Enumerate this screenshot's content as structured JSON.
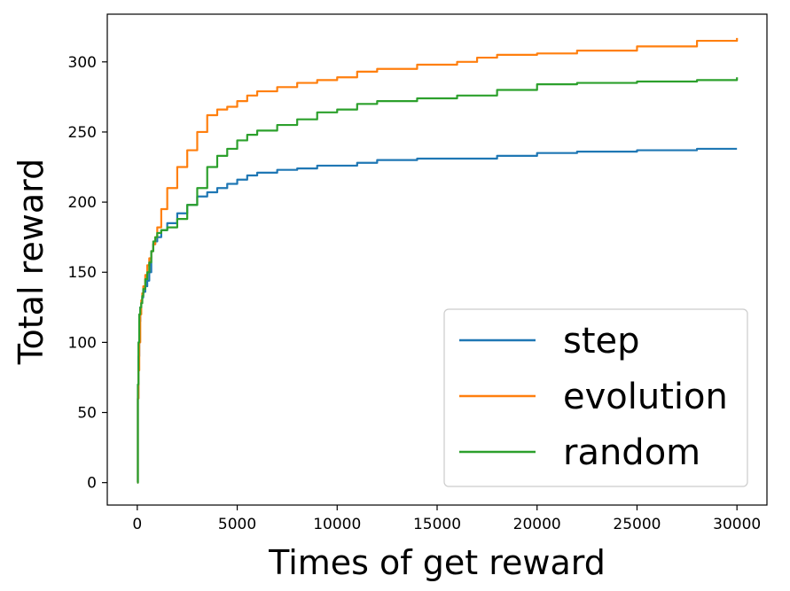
{
  "chart_data": {
    "type": "line",
    "title": "",
    "xlabel": "Times of get reward",
    "ylabel": "Total reward",
    "xlim": [
      -1500,
      31500
    ],
    "ylim": [
      -16,
      334
    ],
    "x_ticks": [
      0,
      5000,
      10000,
      15000,
      20000,
      25000,
      30000
    ],
    "x_tick_labels": [
      "0",
      "5000",
      "10000",
      "15000",
      "20000",
      "25000",
      "30000"
    ],
    "y_ticks": [
      0,
      50,
      100,
      150,
      200,
      250,
      300
    ],
    "y_tick_labels": [
      "0",
      "50",
      "100",
      "150",
      "200",
      "250",
      "300"
    ],
    "grid": false,
    "legend": {
      "position": "lower right",
      "entries": [
        "step",
        "evolution",
        "random"
      ]
    },
    "series": [
      {
        "name": "step",
        "color": "#1f77b4",
        "x": [
          0,
          30,
          60,
          100,
          150,
          200,
          250,
          300,
          400,
          500,
          600,
          700,
          800,
          900,
          1000,
          1200,
          1500,
          2000,
          2500,
          3000,
          3500,
          4000,
          4500,
          5000,
          5500,
          6000,
          7000,
          8000,
          9000,
          10000,
          11000,
          12000,
          14000,
          16000,
          18000,
          20000,
          22000,
          25000,
          28000,
          30000
        ],
        "y": [
          0,
          60,
          90,
          115,
          125,
          128,
          132,
          136,
          140,
          144,
          150,
          165,
          170,
          172,
          175,
          180,
          185,
          192,
          198,
          204,
          207,
          210,
          213,
          216,
          219,
          221,
          223,
          224,
          226,
          226,
          228,
          230,
          231,
          231,
          233,
          235,
          236,
          237,
          238,
          238
        ]
      },
      {
        "name": "evolution",
        "color": "#ff7f0e",
        "x": [
          0,
          30,
          60,
          100,
          150,
          200,
          250,
          300,
          400,
          500,
          600,
          700,
          800,
          900,
          1000,
          1200,
          1500,
          2000,
          2500,
          3000,
          3500,
          4000,
          4500,
          5000,
          5500,
          6000,
          7000,
          8000,
          9000,
          10000,
          11000,
          12000,
          14000,
          16000,
          17000,
          18000,
          20000,
          22000,
          25000,
          28000,
          30000
        ],
        "y": [
          0,
          60,
          80,
          100,
          120,
          130,
          135,
          140,
          148,
          155,
          160,
          165,
          170,
          175,
          182,
          195,
          210,
          225,
          237,
          250,
          262,
          266,
          268,
          272,
          276,
          279,
          282,
          285,
          287,
          289,
          293,
          295,
          298,
          300,
          303,
          305,
          306,
          308,
          311,
          315,
          317
        ]
      },
      {
        "name": "random",
        "color": "#2ca02c",
        "x": [
          0,
          30,
          60,
          100,
          150,
          200,
          250,
          300,
          400,
          500,
          600,
          700,
          800,
          900,
          1000,
          1200,
          1500,
          2000,
          2500,
          3000,
          3500,
          4000,
          4500,
          5000,
          5500,
          6000,
          7000,
          8000,
          9000,
          10000,
          11000,
          12000,
          14000,
          16000,
          18000,
          20000,
          22000,
          25000,
          28000,
          30000
        ],
        "y": [
          0,
          70,
          100,
          120,
          125,
          128,
          133,
          138,
          145,
          150,
          157,
          165,
          172,
          175,
          178,
          180,
          182,
          188,
          198,
          210,
          225,
          233,
          238,
          244,
          248,
          251,
          255,
          259,
          264,
          266,
          270,
          272,
          274,
          276,
          280,
          284,
          285,
          286,
          287,
          289
        ]
      }
    ]
  }
}
